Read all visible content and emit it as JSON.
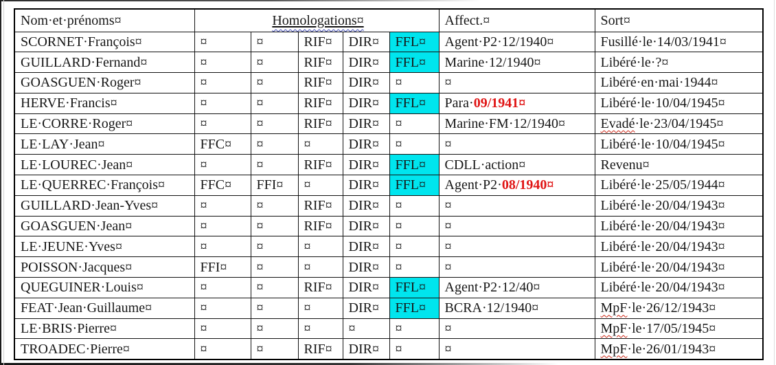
{
  "colors": {
    "highlight_cyan": "#00e5ee",
    "red_text": "#e01414",
    "spell_wavy_red": "#cc2211",
    "grammar_wavy_blue": "#3a46b4"
  },
  "marks": {
    "end_of_cell": "¤",
    "space_dot": "·"
  },
  "header": {
    "name": "Nom·et·prénoms¤",
    "homologations": "Homologations¤",
    "affect": "Affect.¤",
    "sort": "Sort¤"
  },
  "rows": [
    {
      "name": "SCORNET·François¤",
      "hom": [
        "¤",
        "¤",
        "RIF¤",
        "DIR¤",
        {
          "t": "FFL¤",
          "hl": true
        }
      ],
      "affect": [
        "Agent·P2·12/1940¤"
      ],
      "sort": [
        "Fusillé·le·14/03/1941¤"
      ]
    },
    {
      "name": "GUILLARD·Fernand¤",
      "hom": [
        "¤",
        "¤",
        "RIF¤",
        "DIR¤",
        {
          "t": "FFL¤",
          "hl": true
        }
      ],
      "affect": [
        "Marine·12/1940¤"
      ],
      "sort": [
        "Libéré·le·?¤"
      ]
    },
    {
      "name": "GOASGUEN·Roger¤",
      "hom": [
        "¤",
        "¤",
        "RIF¤",
        "DIR¤",
        "¤"
      ],
      "affect": [
        "¤"
      ],
      "sort": [
        "Libéré·en·mai·1944¤"
      ]
    },
    {
      "name": "HERVE·Francis¤",
      "hom": [
        "¤",
        "¤",
        "RIF¤",
        "DIR¤",
        {
          "t": "FFL¤",
          "hl": true
        }
      ],
      "affect": [
        "Para·",
        {
          "t": "09/1941¤",
          "s": "rb"
        }
      ],
      "sort": [
        "Libéré·le·10/04/1945¤"
      ]
    },
    {
      "name": "LE·CORRE·Roger¤",
      "hom": [
        "¤",
        "¤",
        "RIF¤",
        "DIR¤",
        "¤"
      ],
      "affect": [
        "Marine·FM·12/1940¤"
      ],
      "sort": [
        {
          "t": "Evadé",
          "s": "sp"
        },
        "·le·23/04/1945¤"
      ]
    },
    {
      "name": "LE·LAY·Jean¤",
      "hom": [
        "FFC¤",
        "¤",
        "¤",
        "DIR¤",
        "¤"
      ],
      "affect": [
        "¤"
      ],
      "sort": [
        "Libéré·le·10/04/1945¤"
      ]
    },
    {
      "name": "LE·LOUREC·Jean¤",
      "hom": [
        "¤",
        "¤",
        "RIF¤",
        "DIR¤",
        {
          "t": "FFL¤",
          "hl": true
        }
      ],
      "affect": [
        "CDLL·action¤"
      ],
      "sort": [
        "Revenu¤"
      ]
    },
    {
      "name": "LE·QUERREC·François¤",
      "hom": [
        "FFC¤",
        "FFI¤",
        "¤",
        "DIR¤",
        {
          "t": "FFL¤",
          "hl": true
        }
      ],
      "affect": [
        "Agent·P2·",
        {
          "t": "08/1940¤",
          "s": "rb"
        }
      ],
      "sort": [
        "Libéré·le·25/05/1944¤"
      ]
    },
    {
      "name": "GUILLARD·Jean-Yves¤",
      "hom": [
        "¤",
        "¤",
        "RIF¤",
        "DIR¤",
        "¤"
      ],
      "affect": [
        "¤"
      ],
      "sort": [
        "Libéré·le·20/04/1943¤"
      ]
    },
    {
      "name": "GOASGUEN·Jean¤",
      "hom": [
        "¤",
        "¤",
        "RIF¤",
        "DIR¤",
        "¤"
      ],
      "affect": [
        "¤"
      ],
      "sort": [
        "Libéré·le·20/04/1943¤"
      ]
    },
    {
      "name": "LE·JEUNE·Yves¤",
      "hom": [
        "¤",
        "¤",
        "¤",
        "DIR¤",
        "¤"
      ],
      "affect": [
        "¤"
      ],
      "sort": [
        "Libéré·le·20/04/1943¤"
      ]
    },
    {
      "name": "POISSON·Jacques¤",
      "hom": [
        "FFI¤",
        "¤",
        "¤",
        "DIR¤",
        "¤"
      ],
      "affect": [
        "¤"
      ],
      "sort": [
        "Libéré·le·20/04/1943¤"
      ]
    },
    {
      "name": "QUEGUINER·Louis¤",
      "hom": [
        "¤",
        "¤",
        "RIF¤",
        "DIR¤",
        {
          "t": "FFL¤",
          "hl": true
        }
      ],
      "affect": [
        "Agent·P2·12/40¤"
      ],
      "sort": [
        "Libéré·le·20/04/1943¤"
      ]
    },
    {
      "name": "FEAT·Jean·Guillaume¤",
      "hom": [
        "¤",
        "¤",
        "¤",
        "DIR¤",
        {
          "t": "FFL¤",
          "hl": true
        }
      ],
      "affect": [
        "BCRA·12/1940¤"
      ],
      "sort": [
        {
          "t": "MpF",
          "s": "sp"
        },
        "·le·26/12/1943¤"
      ]
    },
    {
      "name": "LE·BRIS·Pierre¤",
      "hom": [
        "¤",
        "¤",
        "¤",
        "¤",
        "¤"
      ],
      "affect": [
        "¤"
      ],
      "sort": [
        {
          "t": "MpF",
          "s": "sp"
        },
        "·le·17/05/1945¤"
      ]
    },
    {
      "name": "TROADEC·Pierre¤",
      "hom": [
        "¤",
        "¤",
        "RIF¤",
        "DIR¤",
        "¤"
      ],
      "affect": [
        "¤"
      ],
      "sort": [
        {
          "t": "MpF",
          "s": "sp"
        },
        "·le·26/01/1943¤"
      ]
    }
  ]
}
